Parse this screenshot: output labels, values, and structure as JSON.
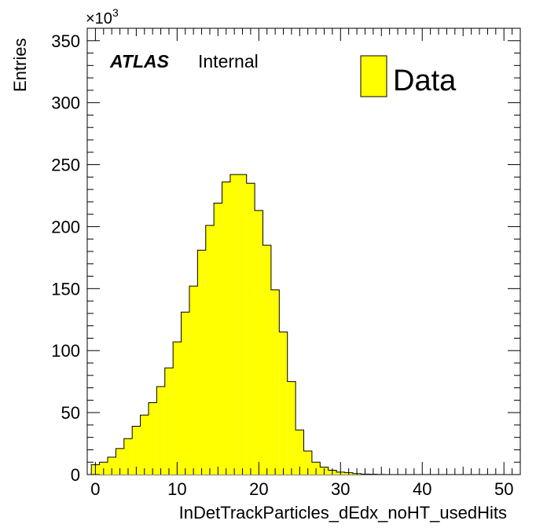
{
  "chart_data": {
    "type": "bar",
    "histogram": true,
    "xlabel": "InDetTrackParticles_dEdx_noHT_usedHits",
    "ylabel": "Entries",
    "y_multiplier": "×10",
    "y_exponent": "3",
    "xlim": [
      -1,
      52
    ],
    "ylim": [
      0,
      360
    ],
    "x_ticks": [
      0,
      10,
      20,
      30,
      40,
      50
    ],
    "y_ticks": [
      0,
      50,
      100,
      150,
      200,
      250,
      300,
      350
    ],
    "bin_width": 1,
    "bin_lows": [
      -0.5,
      0.5,
      1.5,
      2.5,
      3.5,
      4.5,
      5.5,
      6.5,
      7.5,
      8.5,
      9.5,
      10.5,
      11.5,
      12.5,
      13.5,
      14.5,
      15.5,
      16.5,
      17.5,
      18.5,
      19.5,
      20.5,
      21.5,
      22.5,
      23.5,
      24.5,
      25.5,
      26.5,
      27.5,
      28.5,
      29.5,
      30.5,
      31.5,
      32.5,
      33.5,
      34.5
    ],
    "values": [
      8,
      10,
      14,
      21,
      29,
      39,
      48,
      58,
      71,
      86,
      107,
      131,
      152,
      181,
      201,
      219,
      236,
      242,
      242,
      235,
      213,
      185,
      149,
      115,
      75,
      36,
      19,
      10,
      6,
      3.5,
      2,
      1.5,
      0.8,
      0.4,
      0.2,
      0.1
    ],
    "series": [
      {
        "name": "Data",
        "color": "#ffff00"
      }
    ],
    "legend_position": "top-right",
    "annotation": {
      "bold": "ATLAS",
      "normal": "Internal"
    },
    "grid": false
  }
}
